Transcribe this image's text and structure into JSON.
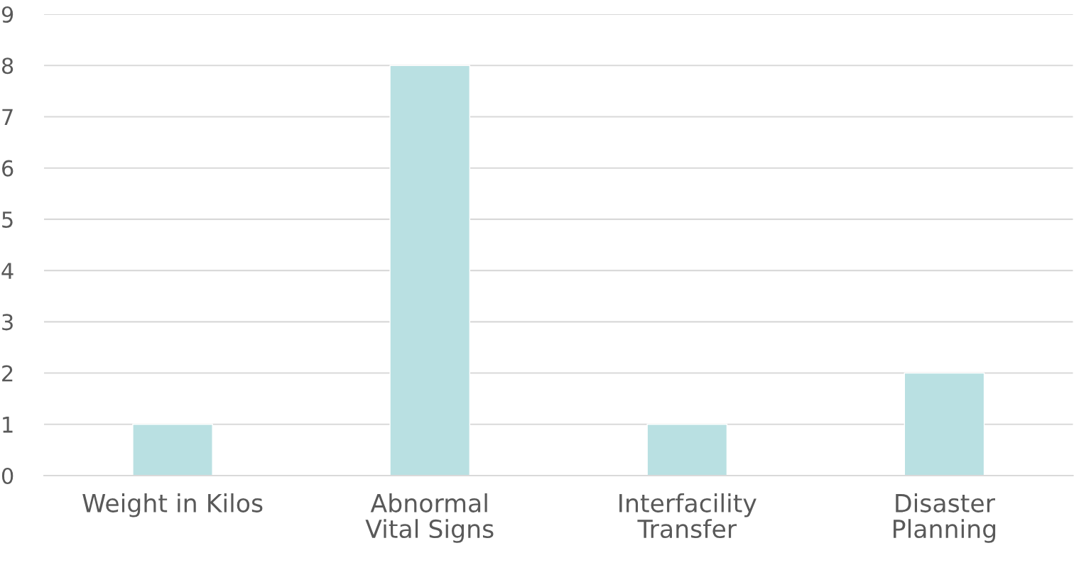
{
  "chart_data": {
    "type": "bar",
    "categories": [
      "Weight in Kilos",
      "Abnormal Vital Signs",
      "Interfacility Transfer",
      "Disaster Planning"
    ],
    "values": [
      1,
      8,
      1,
      2
    ],
    "color": "#b9e0e2",
    "ylim": [
      0,
      9
    ],
    "yticks": [
      0,
      1,
      2,
      3,
      4,
      5,
      6,
      7,
      8,
      9
    ],
    "grid": "y",
    "legend": false
  }
}
